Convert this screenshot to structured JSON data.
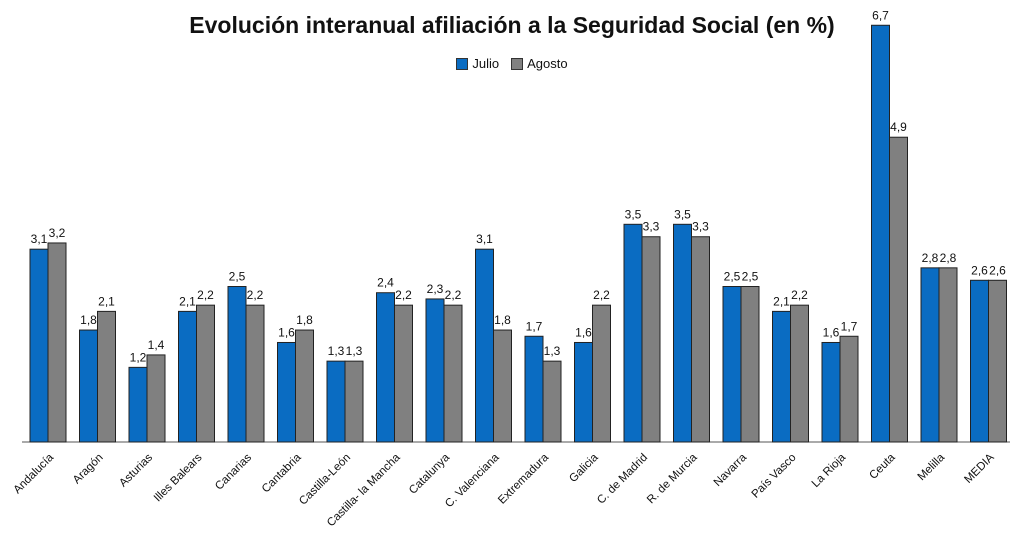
{
  "chart_data": {
    "type": "bar",
    "title": "Evolución interanual afiliación a la Seguridad Social (en %)",
    "categories": [
      "Andalucía",
      "Aragón",
      "Asturias",
      "Illes Balears",
      "Canarias",
      "Cantabria",
      "Castilla-León",
      "Castilla- la Mancha",
      "Catalunya",
      "C. Valenciana",
      "Extremadura",
      "Galicia",
      "C. de Madrid",
      "R. de Murcia",
      "Navarra",
      "País Vasco",
      "La Rioja",
      "Ceuta",
      "Melilla",
      "MEDIA"
    ],
    "series": [
      {
        "name": "Julio",
        "color": "#0a6cc2",
        "values": [
          3.1,
          1.8,
          1.2,
          2.1,
          2.5,
          1.6,
          1.3,
          2.4,
          2.3,
          3.1,
          1.7,
          1.6,
          3.5,
          3.5,
          2.5,
          2.1,
          1.6,
          6.7,
          2.8,
          2.6
        ],
        "labels": [
          "3,1",
          "1,8",
          "1,2",
          "2,1",
          "2,5",
          "1,6",
          "1,3",
          "2,4",
          "2,3",
          "3,1",
          "1,7",
          "1,6",
          "3,5",
          "3,5",
          "2,5",
          "2,1",
          "1,6",
          "6,7",
          "2,8",
          "2,6"
        ]
      },
      {
        "name": "Agosto",
        "color": "#808080",
        "values": [
          3.2,
          2.1,
          1.4,
          2.2,
          2.2,
          1.8,
          1.3,
          2.2,
          2.2,
          1.8,
          1.3,
          2.2,
          3.3,
          3.3,
          2.5,
          2.2,
          1.7,
          4.9,
          2.8,
          2.6
        ],
        "labels": [
          "3,2",
          "2,1",
          "1,4",
          "2,2",
          "2,2",
          "1,8",
          "1,3",
          "2,2",
          "2,2",
          "1,8",
          "1,3",
          "2,2",
          "3,3",
          "3,3",
          "2,5",
          "2,2",
          "1,7",
          "4,9",
          "2,8",
          "2,6"
        ]
      }
    ],
    "ylim": [
      0,
      6.8
    ],
    "grid": false,
    "legend_position": "top-center",
    "xlabel": "",
    "ylabel": ""
  }
}
